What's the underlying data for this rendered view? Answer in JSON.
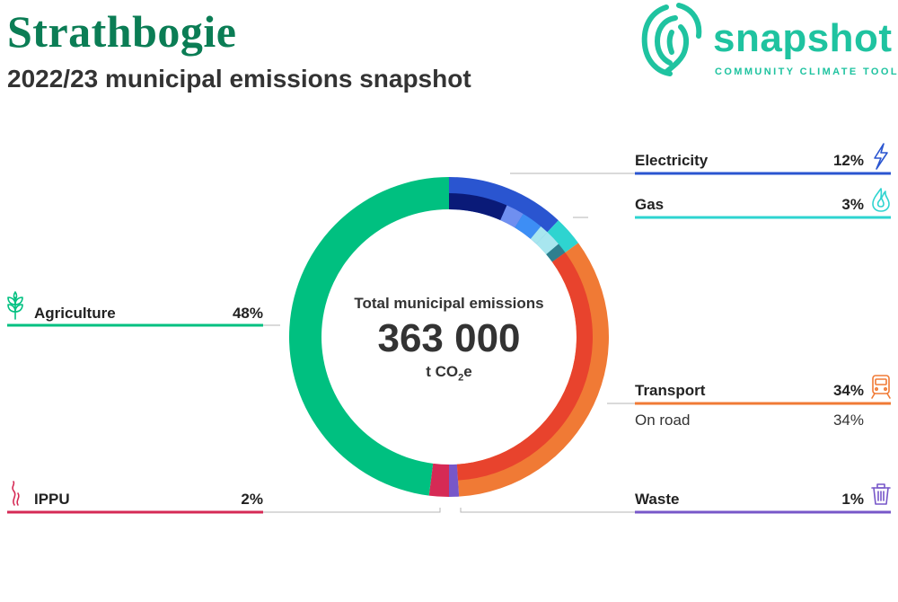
{
  "header": {
    "title": "Strathbogie",
    "subtitle": "2022/23 municipal emissions snapshot"
  },
  "logo": {
    "icon": "fingerprint-swirl-icon",
    "word": "snapshot",
    "tagline": "COMMUNITY CLIMATE TOOL",
    "color": "#1fc3a0"
  },
  "center": {
    "label": "Total municipal emissions",
    "value": "363 000",
    "unit_main": "t CO",
    "unit_sub": "2",
    "unit_end": "e"
  },
  "chart_data": {
    "type": "pie",
    "style": "donut",
    "title": "2022/23 municipal emissions snapshot",
    "total": 363000,
    "unit": "t CO2e",
    "categories": [
      {
        "name": "Electricity",
        "percent": 12,
        "percent_label": "12%",
        "color": "#2a55d0",
        "icon": "lightning-bolt-icon"
      },
      {
        "name": "Gas",
        "percent": 3,
        "percent_label": "3%",
        "color": "#2ed4d0",
        "icon": "flame-icon"
      },
      {
        "name": "Transport",
        "percent": 34,
        "percent_label": "34%",
        "color": "#f07a35",
        "icon": "train-icon",
        "subcategories": [
          {
            "name": "On road",
            "percent": 34,
            "percent_label": "34%",
            "color": "#e8432d"
          }
        ]
      },
      {
        "name": "Waste",
        "percent": 1,
        "percent_label": "1%",
        "color": "#7757c9",
        "icon": "trash-bin-icon"
      },
      {
        "name": "IPPU",
        "percent": 2,
        "percent_label": "2%",
        "color": "#d62a55",
        "icon": "smoke-icon"
      },
      {
        "name": "Agriculture",
        "percent": 48,
        "percent_label": "48%",
        "color": "#00c080",
        "icon": "wheat-icon"
      }
    ],
    "inner_detail": [
      {
        "parent": "Electricity",
        "fraction": 0.55,
        "color": "#0a1a78"
      },
      {
        "parent": "Electricity",
        "fraction": 0.17,
        "color": "#6f8ff0"
      },
      {
        "parent": "Electricity",
        "fraction": 0.2,
        "color": "#3d8ef5"
      },
      {
        "parent": "Electricity",
        "fraction": 0.08,
        "color": "#a8e6ef"
      },
      {
        "parent": "Gas",
        "fraction": 0.6,
        "color": "#a8e6ef"
      },
      {
        "parent": "Gas",
        "fraction": 0.4,
        "color": "#2f7f8f"
      },
      {
        "parent": "Transport",
        "fraction": 1.0,
        "color": "#e8432d"
      }
    ],
    "legend_placement": "around"
  }
}
